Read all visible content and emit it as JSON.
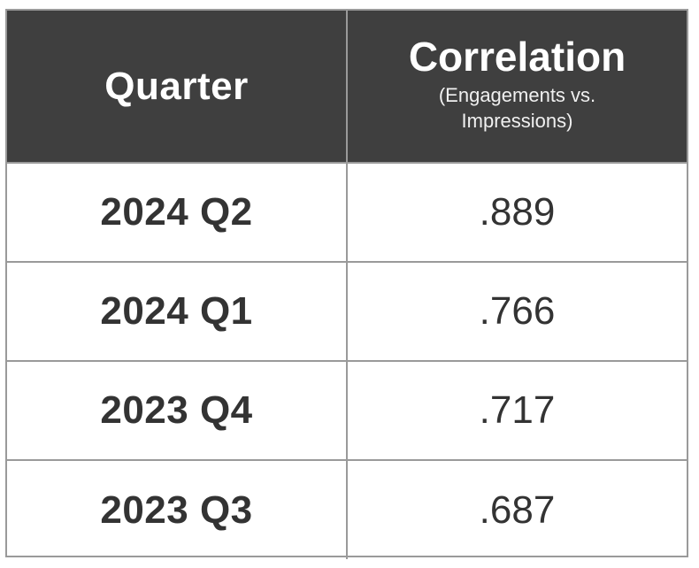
{
  "table": {
    "header_quarter": "Quarter",
    "header_correlation": "Correlation",
    "header_correlation_sub": "(Engagements vs. Impressions)"
  },
  "chart_data": {
    "type": "table",
    "columns": [
      "Quarter",
      "Correlation (Engagements vs. Impressions)"
    ],
    "rows": [
      {
        "quarter": "2024 Q2",
        "correlation": ".889"
      },
      {
        "quarter": "2024 Q1",
        "correlation": ".766"
      },
      {
        "quarter": "2023 Q4",
        "correlation": ".717"
      },
      {
        "quarter": "2023 Q3",
        "correlation": ".687"
      }
    ]
  },
  "colors": {
    "header_background": "#3f3f3f",
    "header_text": "#ffffff",
    "body_text": "#333333",
    "grid_line": "#9a9a9a"
  }
}
